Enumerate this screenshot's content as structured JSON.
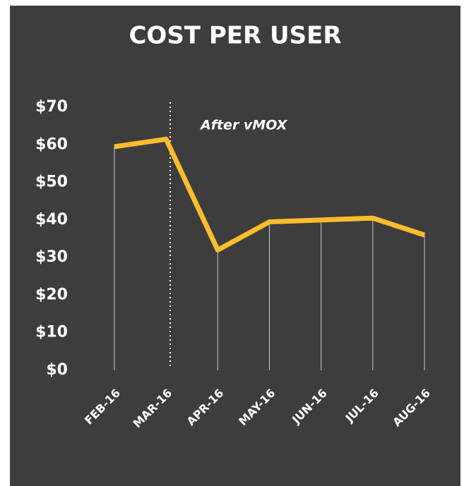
{
  "chart_data": {
    "type": "line",
    "title": "COST PER USER",
    "annotation": "After vMOX",
    "categories": [
      "FEB-16",
      "MAR-16",
      "APR-16",
      "MAY-16",
      "JUN-16",
      "JUL-16",
      "AUG-16"
    ],
    "values": [
      59.5,
      61.5,
      32,
      39.5,
      40,
      40.5,
      36
    ],
    "color": "#fcbd2c",
    "ylim": [
      0,
      70
    ],
    "yticks": [
      {
        "value": 0,
        "label": "$0"
      },
      {
        "value": 10,
        "label": "$10"
      },
      {
        "value": 20,
        "label": "$20"
      },
      {
        "value": 30,
        "label": "$30"
      },
      {
        "value": 40,
        "label": "$40"
      },
      {
        "value": 50,
        "label": "$50"
      },
      {
        "value": 60,
        "label": "$60"
      },
      {
        "value": 70,
        "label": "$70"
      }
    ]
  }
}
